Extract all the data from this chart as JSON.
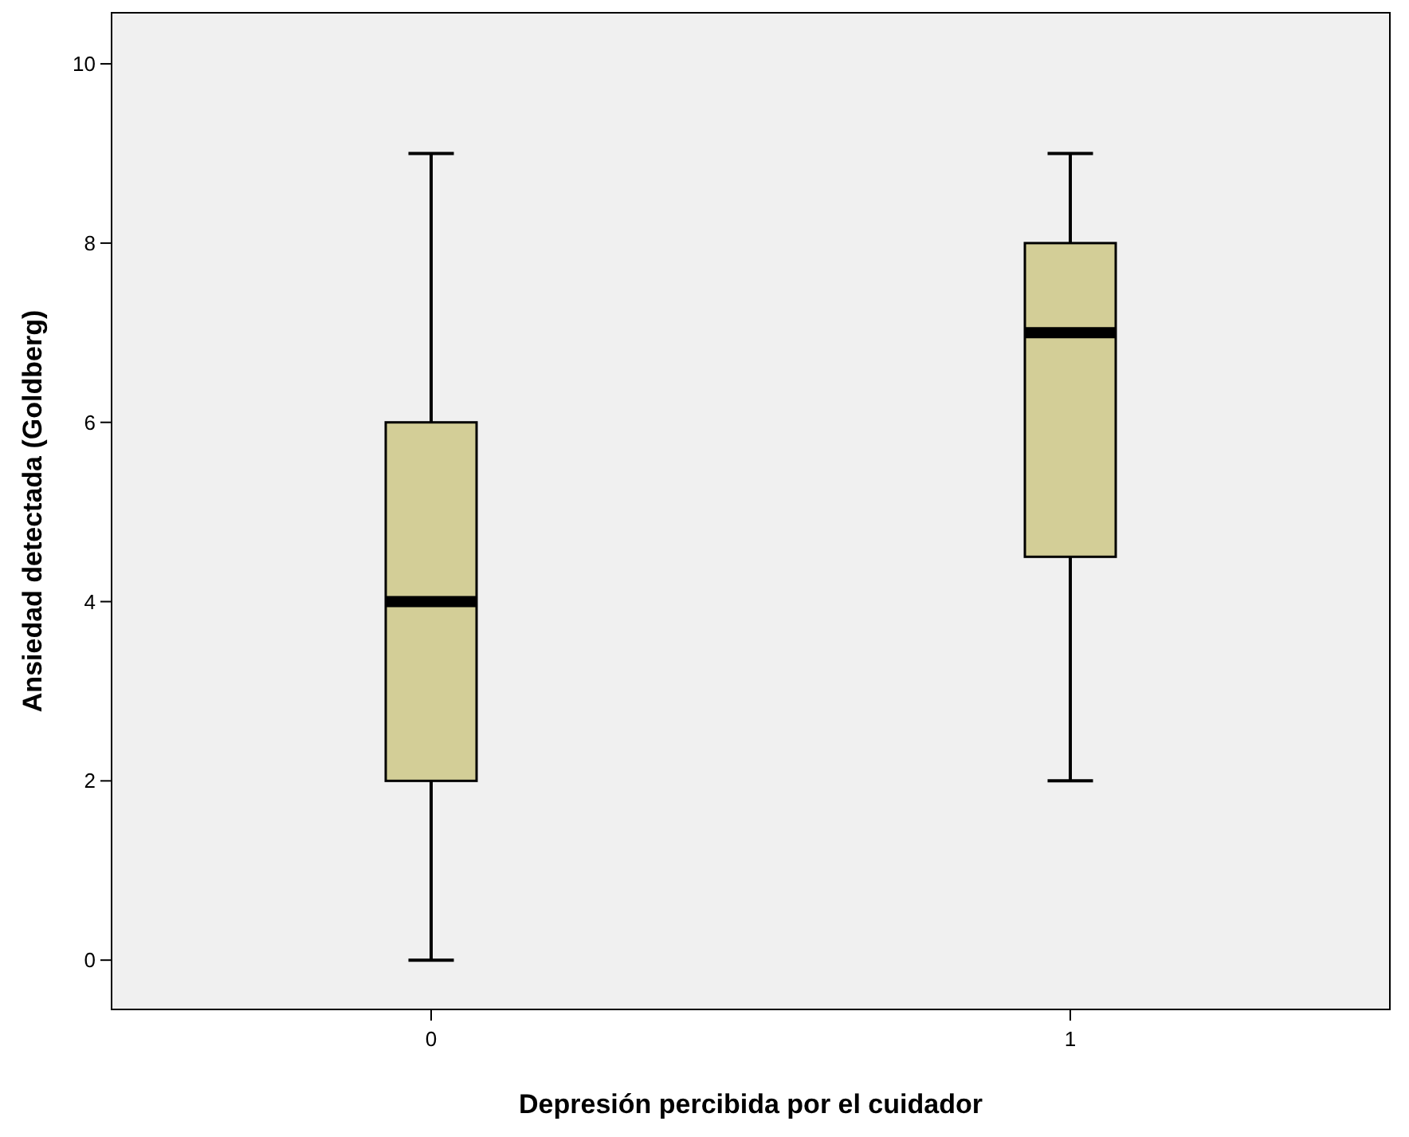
{
  "chart_data": {
    "type": "box",
    "xlabel": "Depresión percibida por el cuidador",
    "ylabel": "Ansiedad detectada (Goldberg)",
    "categories": [
      "0",
      "1"
    ],
    "boxes": [
      {
        "low": 0,
        "q1": 2,
        "median": 4,
        "q3": 6,
        "high": 9
      },
      {
        "low": 2,
        "q1": 4.5,
        "median": 7,
        "q3": 8,
        "high": 9
      }
    ],
    "color": "#d3ce97",
    "ylim": [
      -0.55,
      10.57
    ],
    "yticks": [
      0,
      2,
      4,
      6,
      8,
      10
    ],
    "grid": false
  }
}
